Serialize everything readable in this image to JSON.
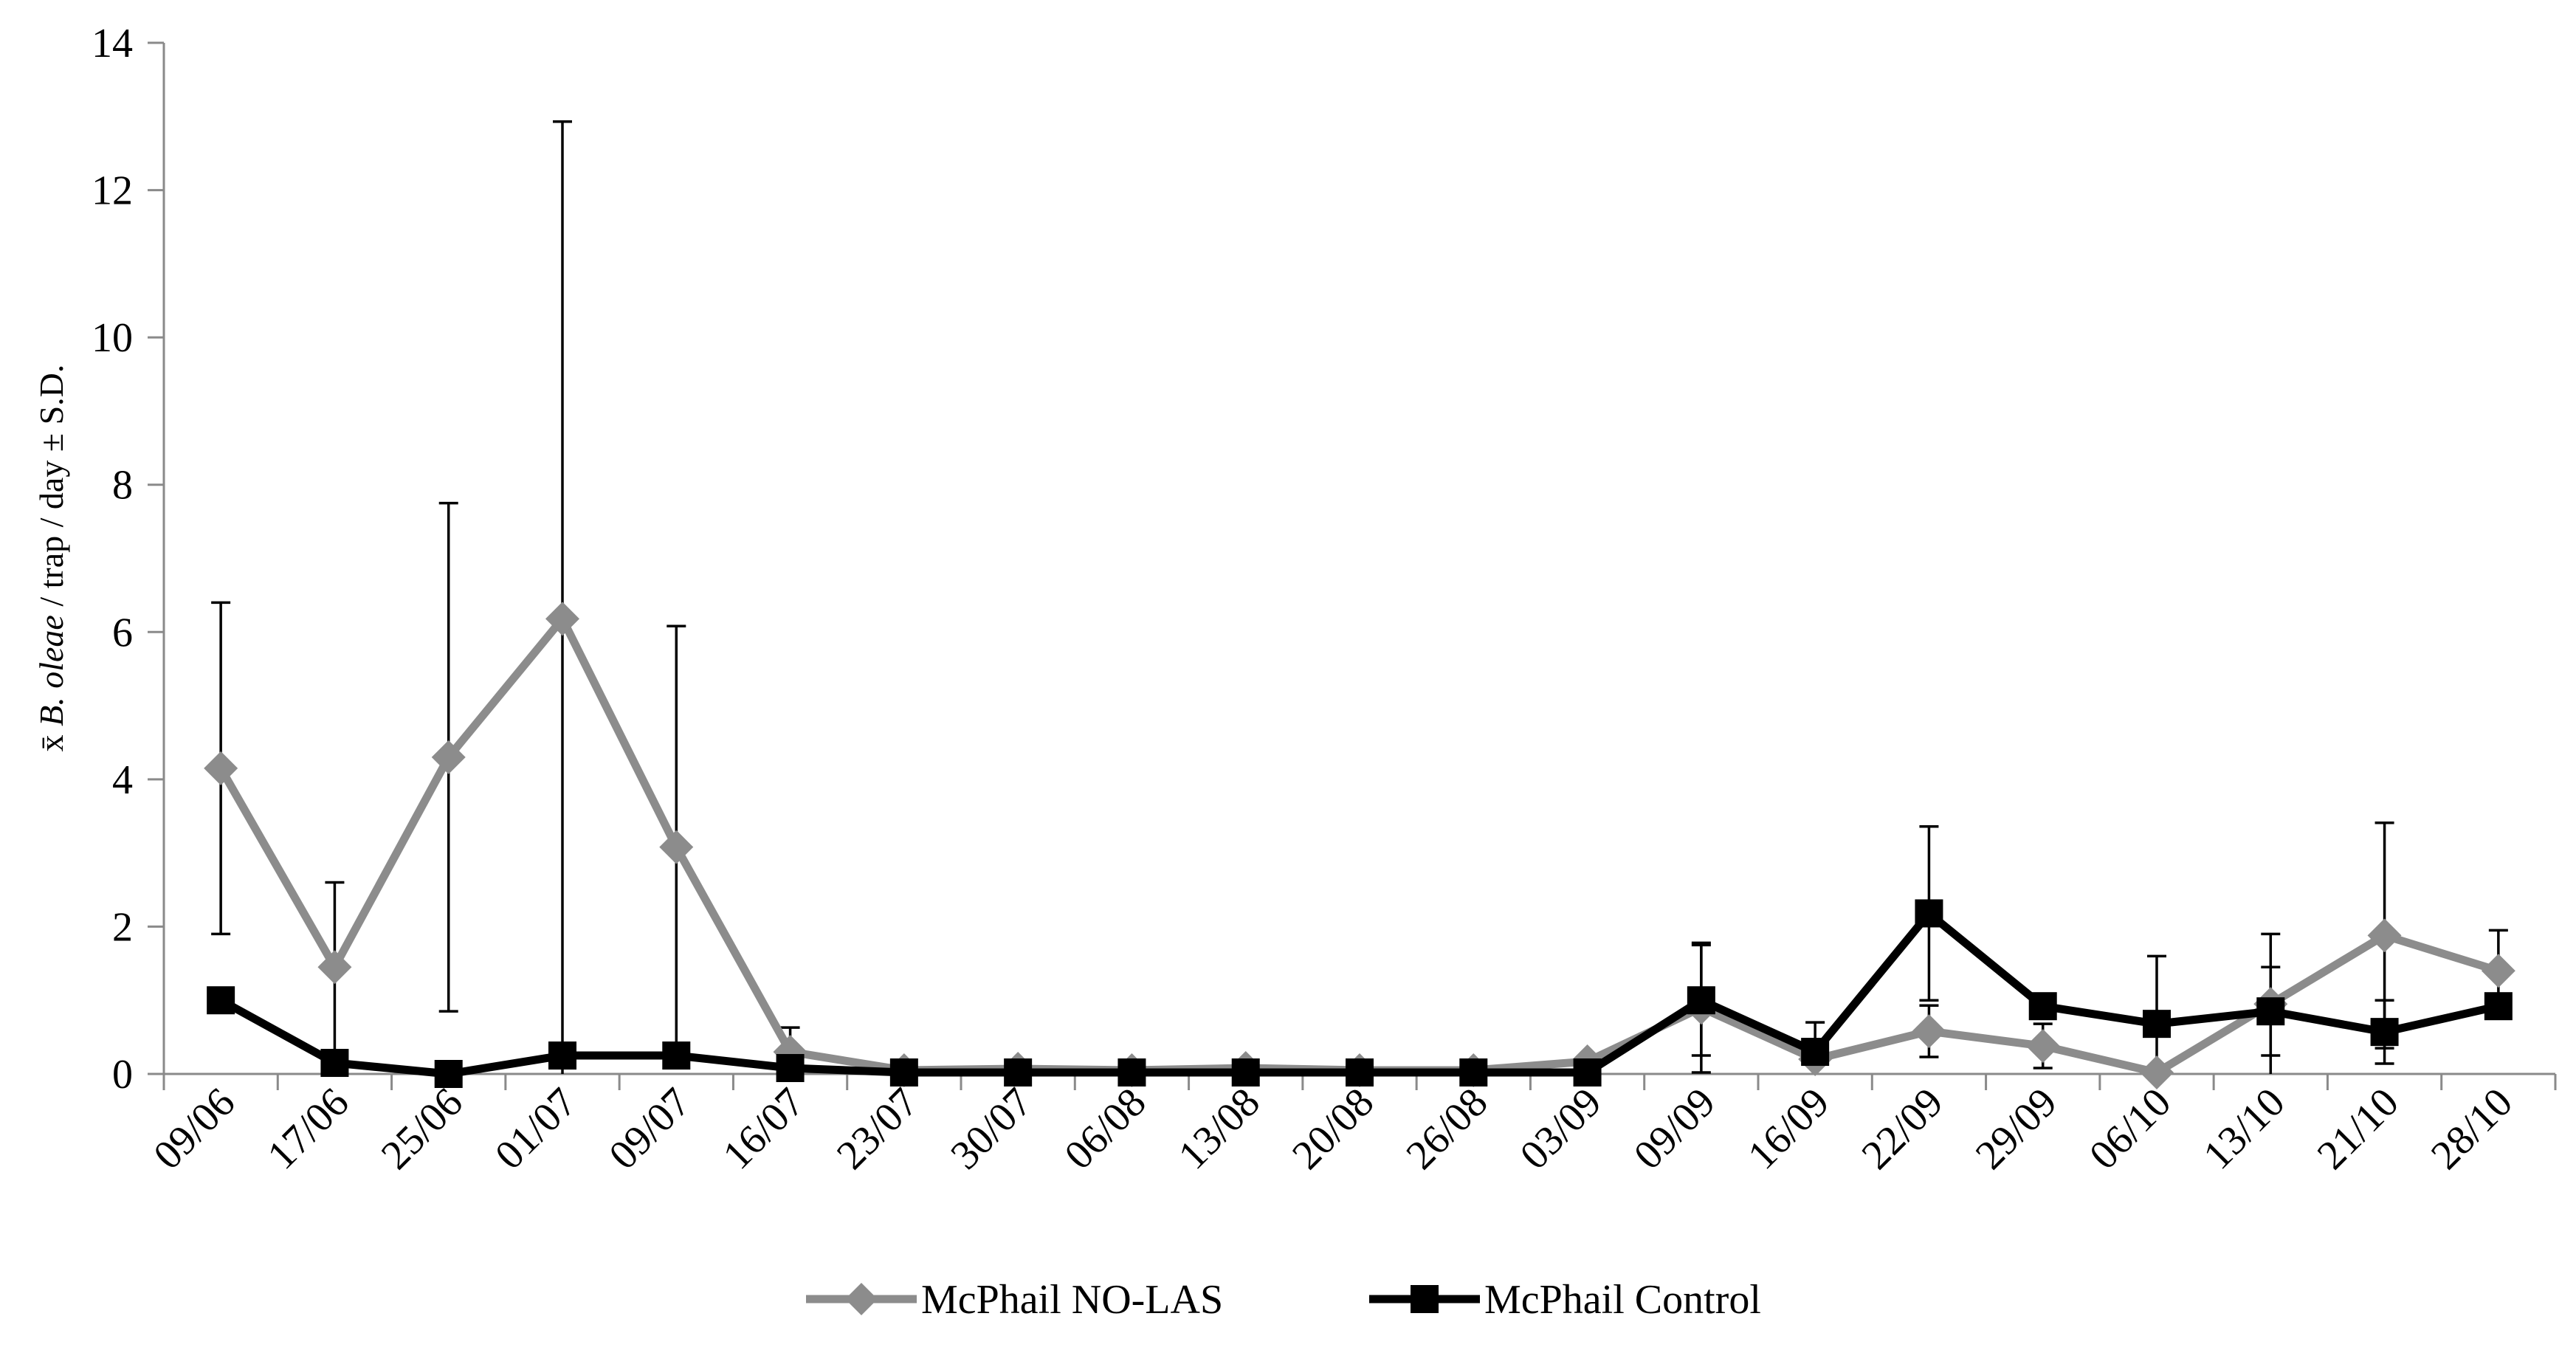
{
  "chart_data": {
    "type": "line",
    "title": "",
    "xlabel": "",
    "ylabel": {
      "prefix": "x̄ ",
      "italic": "B. oleae",
      "suffix": " / trap / day ± S.D."
    },
    "ylim": [
      0,
      14
    ],
    "yticks": [
      "0",
      "2",
      "4",
      "6",
      "8",
      "10",
      "12",
      "14"
    ],
    "categories": [
      "09/06",
      "17/06",
      "25/06",
      "01/07",
      "09/07",
      "16/07",
      "23/07",
      "30/07",
      "06/08",
      "13/08",
      "20/08",
      "26/08",
      "03/09",
      "09/09",
      "16/09",
      "22/09",
      "29/09",
      "06/10",
      "13/10",
      "21/10",
      "28/10"
    ],
    "grid": false,
    "legend_position": "bottom",
    "series": [
      {
        "name": "McPhail NO-LAS",
        "color": "#8c8c8c",
        "marker": "diamond",
        "values": [
          4.15,
          1.45,
          4.3,
          6.18,
          3.08,
          0.3,
          0.05,
          0.07,
          0.05,
          0.08,
          0.05,
          0.05,
          0.17,
          0.9,
          0.2,
          0.58,
          0.38,
          0.02,
          0.95,
          1.88,
          1.4
        ],
        "error": [
          2.25,
          1.15,
          3.45,
          6.75,
          3.0,
          0.33,
          0,
          0,
          0,
          0,
          0,
          0,
          0,
          0.88,
          0.2,
          0.35,
          0.3,
          0,
          0.95,
          1.53,
          0.55
        ]
      },
      {
        "name": "McPhail Control",
        "color": "#000000",
        "marker": "square",
        "values": [
          1.0,
          0.15,
          0.0,
          0.25,
          0.25,
          0.08,
          0.02,
          0.02,
          0.02,
          0.02,
          0.02,
          0.02,
          0.02,
          1.0,
          0.3,
          2.18,
          0.92,
          0.68,
          0.85,
          0.57,
          0.92
        ],
        "error": [
          0,
          0,
          0,
          0,
          0,
          0,
          0,
          0,
          0,
          0,
          0,
          0,
          0,
          0.75,
          0.4,
          1.18,
          0,
          0.92,
          0.6,
          0.43,
          0
        ]
      }
    ]
  }
}
